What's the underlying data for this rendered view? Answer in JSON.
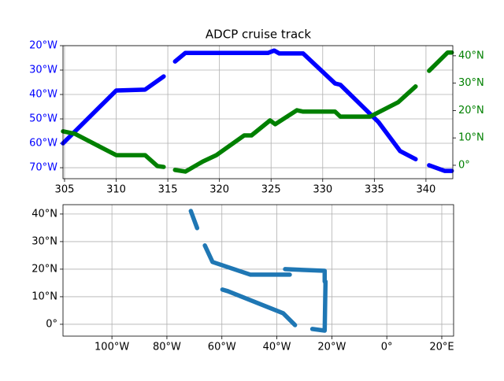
{
  "chart_data": [
    {
      "type": "line",
      "title": "ADCP cruise track",
      "grid": true,
      "xlim": [
        304.85,
        342.6
      ],
      "xticks": [
        305,
        310,
        315,
        320,
        325,
        330,
        335,
        340
      ],
      "ylim": [
        -74.5,
        -20
      ],
      "yticks": [
        {
          "value": -20,
          "label": "20°W"
        },
        {
          "value": -30,
          "label": "30°W"
        },
        {
          "value": -40,
          "label": "40°W"
        },
        {
          "value": -50,
          "label": "50°W"
        },
        {
          "value": -60,
          "label": "60°W"
        },
        {
          "value": -70,
          "label": "70°W"
        }
      ],
      "y2lim": [
        -4.9,
        43.7
      ],
      "y2ticks": [
        {
          "value": 0,
          "label": "0°"
        },
        {
          "value": 10,
          "label": "10°N"
        },
        {
          "value": 20,
          "label": "20°N"
        },
        {
          "value": 30,
          "label": "30°N"
        },
        {
          "value": 40,
          "label": "40°N"
        }
      ],
      "series": [
        {
          "color": "blue",
          "axis": "y",
          "x": [
            304.85,
            310,
            312.8,
            314.6,
            null,
            315.7,
            316.7,
            324.7,
            325.3,
            325.8,
            328.1,
            331.2,
            331.7,
            335.4,
            337.5,
            339,
            null,
            340.3,
            341.8,
            342.5
          ],
          "values": [
            -60,
            -38.4,
            -38,
            -32.6,
            null,
            -26.5,
            -23,
            -23,
            -22,
            -23.2,
            -23.2,
            -35.5,
            -36,
            -51.3,
            -63.2,
            -66.5,
            null,
            -69,
            -71.3,
            -71.3
          ]
        },
        {
          "color": "green",
          "axis": "y2",
          "x": [
            304.85,
            306,
            310,
            312.8,
            314,
            314.6,
            null,
            315.7,
            316.7,
            318.4,
            319.7,
            322.4,
            323.1,
            324.9,
            325.4,
            327.5,
            328.1,
            331.2,
            331.7,
            334.6,
            337.3,
            339,
            null,
            340.3,
            342.1,
            342.5
          ],
          "values": [
            12.4,
            11.5,
            3.7,
            3.7,
            -0.3,
            -0.6,
            null,
            -1.7,
            -2.3,
            1.4,
            3.7,
            10.9,
            10.9,
            16.4,
            15,
            20.1,
            19.6,
            19.6,
            17.8,
            17.8,
            23,
            28.8,
            null,
            34.5,
            41.2,
            41.2
          ]
        }
      ]
    },
    {
      "type": "line",
      "grid": true,
      "xlim": [
        -117.8,
        24.3
      ],
      "xticks": [
        {
          "value": -100,
          "label": "100°W"
        },
        {
          "value": -80,
          "label": "80°W"
        },
        {
          "value": -60,
          "label": "60°W"
        },
        {
          "value": -40,
          "label": "40°W"
        },
        {
          "value": -20,
          "label": "20°W"
        },
        {
          "value": 0,
          "label": "0°"
        },
        {
          "value": 20,
          "label": "20°E"
        }
      ],
      "ylim": [
        -4.3,
        43.4
      ],
      "yticks": [
        {
          "value": 0,
          "label": "0°"
        },
        {
          "value": 10,
          "label": "10°N"
        },
        {
          "value": 20,
          "label": "20°N"
        },
        {
          "value": 30,
          "label": "30°N"
        },
        {
          "value": 40,
          "label": "40°N"
        }
      ],
      "series": [
        {
          "color": "#1f77b4",
          "axis": "y",
          "x": [
            -71.3,
            -69,
            null,
            -66.2,
            -63.4,
            -49.6,
            -35.3,
            null,
            -37,
            -22.6,
            -22.6,
            -22.3,
            -22.6,
            -27.1,
            null,
            -33.4,
            -37.7,
            -57.8,
            -59.8
          ],
          "values": [
            41.1,
            34.9,
            null,
            28.6,
            22.6,
            18,
            18,
            null,
            20,
            19.4,
            15.5,
            15.5,
            -2.3,
            -1.7,
            null,
            -0.3,
            4,
            12,
            12.6
          ]
        }
      ]
    }
  ]
}
